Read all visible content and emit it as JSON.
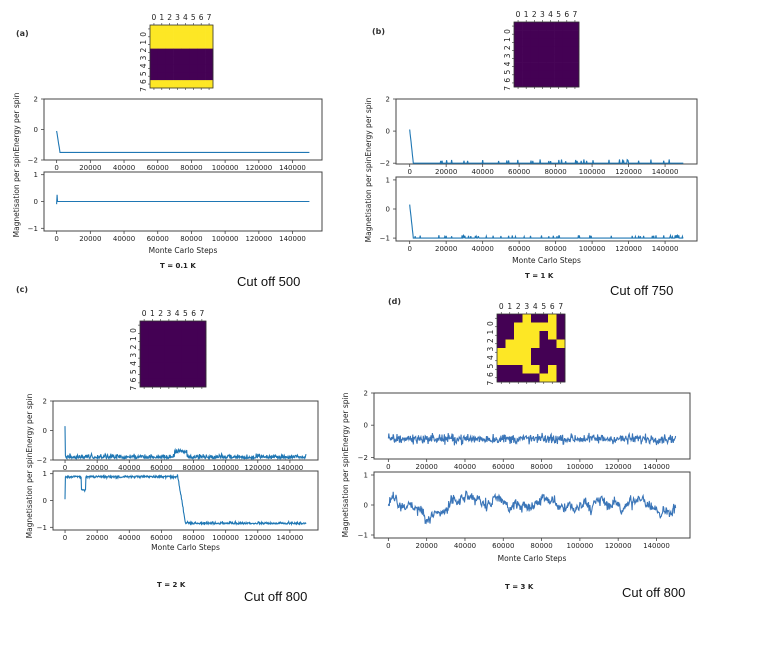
{
  "chart_data": [
    {
      "panel": "(a)",
      "type": "line",
      "temperature_label": "T = 0.1 K",
      "cutoff_note": "Cut off 500",
      "lattice": {
        "type": "heatmap",
        "x_ticks": [
          "0",
          "1",
          "2",
          "3",
          "4",
          "5",
          "6",
          "7"
        ],
        "y_ticks": [
          "0",
          "1",
          "2",
          "3",
          "4",
          "5",
          "6",
          "7"
        ],
        "colors": {
          "up": "#fde725",
          "down": "#440154"
        },
        "grid": [
          [
            1,
            1,
            1,
            1,
            1,
            1,
            1,
            1
          ],
          [
            1,
            1,
            1,
            1,
            1,
            1,
            1,
            1
          ],
          [
            1,
            1,
            1,
            1,
            1,
            1,
            1,
            1
          ],
          [
            0,
            0,
            0,
            0,
            0,
            0,
            0,
            0
          ],
          [
            0,
            0,
            0,
            0,
            0,
            0,
            0,
            0
          ],
          [
            0,
            0,
            0,
            0,
            0,
            0,
            0,
            0
          ],
          [
            0,
            0,
            0,
            0,
            0,
            0,
            0,
            0
          ],
          [
            1,
            1,
            1,
            1,
            1,
            1,
            1,
            1
          ]
        ]
      },
      "energy": {
        "ylabel": "Energy per spin",
        "ylim": [
          -2,
          2
        ],
        "yticks": [
          -2,
          0,
          2
        ],
        "xlim": [
          -7500,
          157500
        ],
        "xticks": [
          0,
          20000,
          40000,
          60000,
          80000,
          100000,
          120000,
          140000
        ],
        "pattern": "decay",
        "start": -0.1,
        "final": -1.5,
        "noise": 0.0,
        "spikes": 0
      },
      "magnetisation": {
        "ylabel": "Magnetisation per spin",
        "ylim": [
          -1.1,
          1.1
        ],
        "yticks": [
          -1,
          0,
          1
        ],
        "xlim": [
          -7500,
          157500
        ],
        "xticks": [
          0,
          20000,
          40000,
          60000,
          80000,
          100000,
          120000,
          140000
        ],
        "xlabel": "Monte Carlo Steps",
        "pattern": "flat-spike",
        "start": 0.25,
        "final": 0.0,
        "noise": 0.0
      },
      "line_color": "#1f77b4",
      "x_max": 150000
    },
    {
      "panel": "(b)",
      "type": "line",
      "temperature_label": "T = 1 K",
      "cutoff_note": "Cut off 750",
      "lattice": {
        "type": "heatmap",
        "x_ticks": [
          "0",
          "1",
          "2",
          "3",
          "4",
          "5",
          "6",
          "7"
        ],
        "y_ticks": [
          "0",
          "1",
          "2",
          "3",
          "4",
          "5",
          "6",
          "7"
        ],
        "colors": {
          "up": "#fde725",
          "down": "#440154"
        },
        "grid": [
          [
            0,
            0,
            0,
            0,
            0,
            0,
            0,
            0
          ],
          [
            0,
            0,
            0,
            0,
            0,
            0,
            0,
            0
          ],
          [
            0,
            0,
            0,
            0,
            0,
            0,
            0,
            0
          ],
          [
            0,
            0,
            0,
            0,
            0,
            0,
            0,
            0
          ],
          [
            0,
            0,
            0,
            0,
            0,
            0,
            0,
            0
          ],
          [
            0,
            0,
            0,
            0,
            0,
            0,
            0,
            0
          ],
          [
            0,
            0,
            0,
            0,
            0,
            0,
            0,
            0
          ],
          [
            0,
            0,
            0,
            0,
            0,
            0,
            0,
            0
          ]
        ]
      },
      "energy": {
        "ylabel": "Energy per spin",
        "ylim": [
          -2.05,
          2
        ],
        "yticks": [
          -2,
          0,
          2
        ],
        "xlim": [
          -7500,
          157500
        ],
        "xticks": [
          0,
          20000,
          40000,
          60000,
          80000,
          100000,
          120000,
          140000
        ],
        "pattern": "decay",
        "start": 0.1,
        "final": -2.0,
        "noise": 0.0,
        "spikes": 40,
        "spike_size": 0.12
      },
      "magnetisation": {
        "ylabel": "Magnetisation per spin",
        "ylim": [
          -1.1,
          1.1
        ],
        "yticks": [
          -1,
          0,
          1
        ],
        "xlim": [
          -7500,
          157500
        ],
        "xticks": [
          0,
          20000,
          40000,
          60000,
          80000,
          100000,
          120000,
          140000
        ],
        "xlabel": "Monte Carlo Steps",
        "pattern": "decay",
        "start": 0.15,
        "final": -1.0,
        "noise": 0.0,
        "spikes": 40,
        "spike_size": 0.05
      },
      "line_color": "#1f77b4",
      "x_max": 150000
    },
    {
      "panel": "(c)",
      "type": "line",
      "temperature_label": "T = 2 K",
      "cutoff_note": "Cut off 800",
      "lattice": {
        "type": "heatmap",
        "x_ticks": [
          "0",
          "1",
          "2",
          "3",
          "4",
          "5",
          "6",
          "7"
        ],
        "y_ticks": [
          "0",
          "1",
          "2",
          "3",
          "4",
          "5",
          "6",
          "7"
        ],
        "colors": {
          "up": "#fde725",
          "down": "#440154"
        },
        "grid": [
          [
            0,
            0,
            0,
            0,
            0,
            0,
            0,
            0
          ],
          [
            0,
            0,
            0,
            0,
            0,
            0,
            0,
            0
          ],
          [
            0,
            0,
            0,
            0,
            0,
            0,
            0,
            0
          ],
          [
            0,
            0,
            0,
            0,
            0,
            0,
            0,
            0
          ],
          [
            0,
            0,
            0,
            0,
            0,
            0,
            0,
            0
          ],
          [
            0,
            0,
            0,
            0,
            0,
            0,
            0,
            0
          ],
          [
            0,
            0,
            0,
            0,
            0,
            0,
            0,
            0
          ],
          [
            0,
            0,
            0,
            0,
            0,
            0,
            0,
            0
          ]
        ]
      },
      "energy": {
        "ylabel": "Energy per spin",
        "ylim": [
          -2,
          2
        ],
        "yticks": [
          -2,
          0,
          2
        ],
        "xlim": [
          -7500,
          157500
        ],
        "xticks": [
          0,
          20000,
          40000,
          60000,
          80000,
          100000,
          120000,
          140000
        ],
        "pattern": "noisy-floor",
        "start": 0.3,
        "final": -1.7,
        "noise": 0.35
      },
      "magnetisation": {
        "ylabel": "Magnetisation per spin",
        "ylim": [
          -1.1,
          1.1
        ],
        "yticks": [
          -1,
          0,
          1
        ],
        "xlim": [
          -7500,
          157500
        ],
        "xticks": [
          0,
          20000,
          40000,
          60000,
          80000,
          100000,
          120000,
          140000
        ],
        "xlabel": "Monte Carlo Steps",
        "pattern": "switch",
        "level_1": 0.92,
        "level_2": -0.88,
        "switch_at": 70000,
        "noise": 0.12
      },
      "line_color": "#1f77b4",
      "x_max": 150000
    },
    {
      "panel": "(d)",
      "type": "line",
      "temperature_label": "T = 3 K",
      "cutoff_note": "Cut off 800",
      "lattice": {
        "type": "heatmap",
        "x_ticks": [
          "0",
          "1",
          "2",
          "3",
          "4",
          "5",
          "6",
          "7"
        ],
        "y_ticks": [
          "0",
          "1",
          "2",
          "3",
          "4",
          "5",
          "6",
          "7"
        ],
        "colors": {
          "up": "#fde725",
          "down": "#440154"
        },
        "grid": [
          [
            0,
            0,
            0,
            1,
            0,
            0,
            1,
            0
          ],
          [
            0,
            0,
            1,
            1,
            1,
            1,
            1,
            0
          ],
          [
            0,
            0,
            1,
            1,
            1,
            0,
            1,
            0
          ],
          [
            0,
            1,
            1,
            1,
            1,
            0,
            0,
            1
          ],
          [
            1,
            1,
            1,
            1,
            0,
            0,
            0,
            0
          ],
          [
            1,
            1,
            1,
            1,
            0,
            0,
            0,
            0
          ],
          [
            0,
            0,
            0,
            1,
            1,
            0,
            1,
            0
          ],
          [
            0,
            0,
            0,
            0,
            0,
            1,
            1,
            0
          ]
        ]
      },
      "energy": {
        "ylabel": "Energy per spin",
        "ylim": [
          -2.1,
          2
        ],
        "yticks": [
          -2,
          0,
          2
        ],
        "xlim": [
          -7500,
          157500
        ],
        "xticks": [
          0,
          20000,
          40000,
          60000,
          80000,
          100000,
          120000,
          140000
        ],
        "pattern": "noisy-band",
        "center": -0.85,
        "noise": 0.45
      },
      "magnetisation": {
        "ylabel": "Magnetisation per spin",
        "ylim": [
          -1.1,
          1.1
        ],
        "yticks": [
          -1,
          0,
          1
        ],
        "xlim": [
          -7500,
          157500
        ],
        "xticks": [
          0,
          20000,
          40000,
          60000,
          80000,
          100000,
          120000,
          140000
        ],
        "xlabel": "Monte Carlo Steps",
        "pattern": "random-walk",
        "center": 0.0,
        "noise": 0.35
      },
      "line_color": "#3a75b8",
      "x_max": 150000
    }
  ],
  "shared_ylabel": "Magnetisation per spinEnergy per spin",
  "panel_labels": [
    "(a)",
    "(b)",
    "(c)",
    "(d)"
  ]
}
